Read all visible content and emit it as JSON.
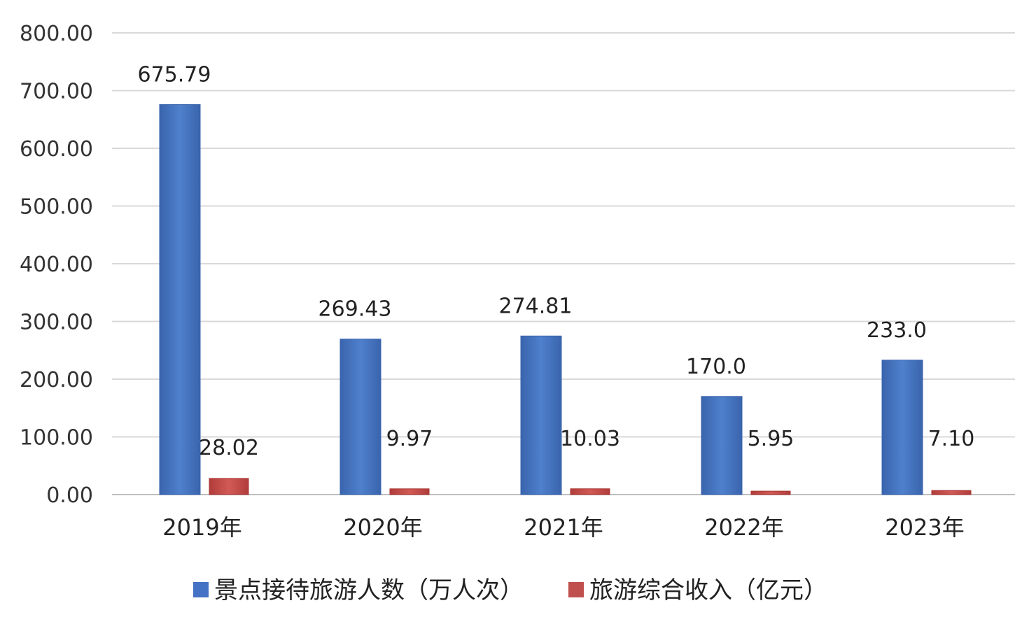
{
  "chart_data": {
    "type": "bar",
    "categories": [
      "2019年",
      "2020年",
      "2021年",
      "2022年",
      "2023年"
    ],
    "series": [
      {
        "name": "景点接待旅游人数（万人次）",
        "values": [
          675.79,
          269.43,
          274.81,
          170.0,
          233.0
        ],
        "labels": [
          "675.79",
          "269.43",
          "274.81",
          "170.0",
          "233.0"
        ],
        "color": "#4472C4"
      },
      {
        "name": "旅游综合收入（亿元）",
        "values": [
          28.02,
          9.97,
          10.03,
          5.95,
          7.1
        ],
        "labels": [
          "28.02",
          "9.97",
          "10.03",
          "5.95",
          "7.10"
        ],
        "color": "#C0504D"
      }
    ],
    "yticks": [
      "0.00",
      "100.00",
      "200.00",
      "300.00",
      "400.00",
      "500.00",
      "600.00",
      "700.00",
      "800.00"
    ],
    "ylim": [
      0,
      800
    ],
    "grid": true,
    "legend_position": "bottom"
  }
}
